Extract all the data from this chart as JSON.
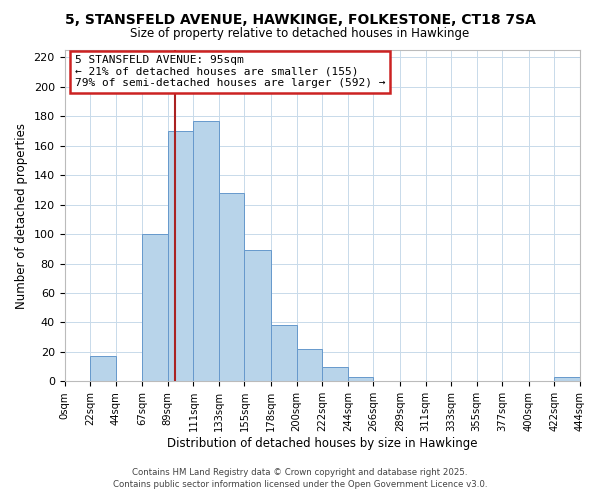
{
  "title_main": "5, STANSFELD AVENUE, HAWKINGE, FOLKESTONE, CT18 7SA",
  "title_sub": "Size of property relative to detached houses in Hawkinge",
  "xlabel": "Distribution of detached houses by size in Hawkinge",
  "ylabel": "Number of detached properties",
  "bin_edges": [
    0,
    22,
    44,
    67,
    89,
    111,
    133,
    155,
    178,
    200,
    222,
    244,
    266,
    289,
    311,
    333,
    355,
    377,
    400,
    422,
    444
  ],
  "bar_heights": [
    0,
    17,
    0,
    100,
    170,
    177,
    128,
    89,
    38,
    22,
    10,
    3,
    0,
    0,
    0,
    0,
    0,
    0,
    0,
    3
  ],
  "bar_color": "#b8d4ea",
  "bar_edge_color": "#6699cc",
  "property_size": 95,
  "annotation_title": "5 STANSFELD AVENUE: 95sqm",
  "annotation_line1": "← 21% of detached houses are smaller (155)",
  "annotation_line2": "79% of semi-detached houses are larger (592) →",
  "vline_color": "#aa2222",
  "ylim": [
    0,
    225
  ],
  "yticks": [
    0,
    20,
    40,
    60,
    80,
    100,
    120,
    140,
    160,
    180,
    200,
    220
  ],
  "tick_labels": [
    "0sqm",
    "22sqm",
    "44sqm",
    "67sqm",
    "89sqm",
    "111sqm",
    "133sqm",
    "155sqm",
    "178sqm",
    "200sqm",
    "222sqm",
    "244sqm",
    "266sqm",
    "289sqm",
    "311sqm",
    "333sqm",
    "355sqm",
    "377sqm",
    "400sqm",
    "422sqm",
    "444sqm"
  ],
  "footer1": "Contains HM Land Registry data © Crown copyright and database right 2025.",
  "footer2": "Contains public sector information licensed under the Open Government Licence v3.0.",
  "bg_color": "#ffffff",
  "grid_color": "#c8daea"
}
